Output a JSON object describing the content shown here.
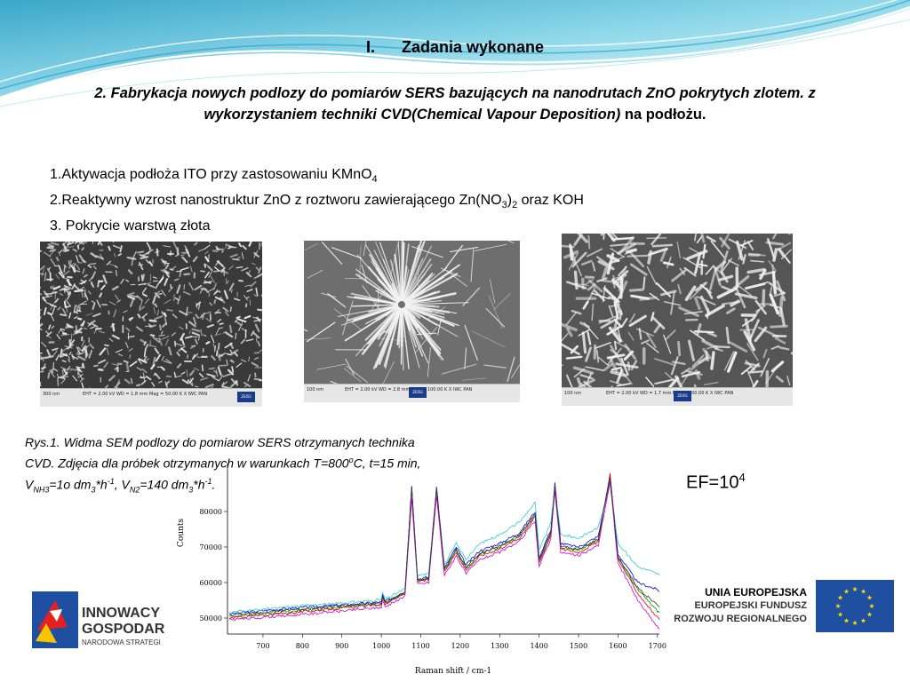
{
  "header": {
    "section_number": "I.",
    "section_title": "Zadania wykonane",
    "subtitle_number": "2",
    "subtitle_bold_italic": ". Fabrykacja nowych podlozy  do pomiarów SERS bazujących na nanodrutach ZnO pokrytych zlotem. z wykorzystaniem techniki CVD(Chemical Vapour Deposition)",
    "subtitle_tail": " na podłożu."
  },
  "steps": {
    "step1_text": "1.Aktywacja podłoża ITO przy zastosowaniu KMnO",
    "step1_sub": "4",
    "step2_text": "2.Reaktywny wzrost nanostruktur ZnO z roztworu zawierającego Zn(NO",
    "step2_sub1": "3",
    "step2_mid": ")",
    "step2_sub2": "2",
    "step2_tail": " oraz KOH",
    "step3_text": "3. Pokrycie warstwą złota"
  },
  "sem_images": [
    {
      "scale": "300 nm",
      "info": "EHT = 2.00 kV  WD = 1.8 mm  Mag = 50.00 K X  IWC PAN"
    },
    {
      "scale": "100 nm",
      "info": "EHT = 2.00 kV  WD = 2.8 mm  Mag = 100.00 K X  IWC PAN"
    },
    {
      "scale": "100 nm",
      "info": "EHT = 2.00 kV  WD = 1.7 mm  Mag = 100.00 K X  IWC PAN"
    }
  ],
  "caption": {
    "line1": "Rys.1. Widma SEM podlozy do pomiarow SERS otrzymanych technika",
    "line2": "CVD. Zdjęcia dla próbek otrzymanych w warunkach T=800",
    "line2_sub": "o",
    "line2_tail": "C, t=15 min,",
    "line3_a": "V",
    "line3_a_sub": "NH3",
    "line3_b": "=1o dm",
    "line3_b_sub": "3",
    "line3_c": "*h",
    "line3_c_sub": "-1",
    "line3_d": ", V",
    "line3_d_sub": "N2",
    "line3_e": "=140 dm",
    "line3_e_sub": "3",
    "line3_f": "*h",
    "line3_f_sub": "-1",
    "line3_g": "."
  },
  "ef": {
    "label": "EF=10",
    "exponent": "4"
  },
  "logos": {
    "left_line1": "INNOWACY",
    "left_line2": "GOSPODAR",
    "left_line3": "NARODOWA STRATEGI",
    "eu_line1": "UNIA EUROPEJSKA",
    "eu_line2": "EUROPEJSKI FUNDUSZ",
    "eu_line3": "ROZWOJU REGIONALNEGO"
  },
  "colors": {
    "banner": "#5fc6e0",
    "zeiss": "#1a3a8a",
    "eu_flag": "#1f4fa0",
    "eu_star": "#ffdd00"
  },
  "chart_data": {
    "type": "line",
    "xlabel": "Raman shift / cm-1",
    "ylabel": "Counts",
    "xlim": [
      610,
      1705
    ],
    "ylim": [
      45500,
      91000
    ],
    "x_ticks": [
      "700",
      "800",
      "900",
      "1000",
      "1100",
      "1200",
      "1300",
      "1400",
      "1500",
      "1600",
      "1700"
    ],
    "y_ticks": [
      "50000",
      "60000",
      "70000",
      "80000"
    ],
    "grid": false,
    "legend": "none",
    "series": [
      {
        "color": "#0000dd",
        "points": [
          [
            615,
            51200
          ],
          [
            700,
            52100
          ],
          [
            800,
            53000
          ],
          [
            900,
            53700
          ],
          [
            1000,
            54500
          ],
          [
            1003,
            56500
          ],
          [
            1010,
            54700
          ],
          [
            1060,
            57500
          ],
          [
            1077,
            87500
          ],
          [
            1092,
            61000
          ],
          [
            1120,
            61500
          ],
          [
            1140,
            87000
          ],
          [
            1160,
            64000
          ],
          [
            1190,
            70000
          ],
          [
            1215,
            65000
          ],
          [
            1250,
            69000
          ],
          [
            1300,
            71000
          ],
          [
            1350,
            74000
          ],
          [
            1390,
            80000
          ],
          [
            1400,
            67000
          ],
          [
            1430,
            75000
          ],
          [
            1440,
            88000
          ],
          [
            1455,
            71000
          ],
          [
            1500,
            70000
          ],
          [
            1550,
            73000
          ],
          [
            1580,
            90000
          ],
          [
            1600,
            68000
          ],
          [
            1650,
            60000
          ],
          [
            1700,
            58000
          ],
          [
            1705,
            57500
          ]
        ]
      },
      {
        "color": "#009900",
        "points": [
          [
            615,
            50500
          ],
          [
            700,
            51200
          ],
          [
            800,
            52200
          ],
          [
            900,
            53000
          ],
          [
            1000,
            54000
          ],
          [
            1003,
            56000
          ],
          [
            1010,
            54200
          ],
          [
            1060,
            57000
          ],
          [
            1077,
            86500
          ],
          [
            1092,
            60500
          ],
          [
            1120,
            61000
          ],
          [
            1140,
            86000
          ],
          [
            1160,
            63500
          ],
          [
            1190,
            69000
          ],
          [
            1215,
            64000
          ],
          [
            1250,
            68000
          ],
          [
            1300,
            70000
          ],
          [
            1350,
            73000
          ],
          [
            1390,
            79000
          ],
          [
            1400,
            66000
          ],
          [
            1430,
            74000
          ],
          [
            1440,
            87000
          ],
          [
            1455,
            70000
          ],
          [
            1500,
            69000
          ],
          [
            1550,
            72000
          ],
          [
            1580,
            89500
          ],
          [
            1600,
            67000
          ],
          [
            1650,
            58000
          ],
          [
            1700,
            52000
          ],
          [
            1705,
            51500
          ]
        ]
      },
      {
        "color": "#dd0000",
        "points": [
          [
            615,
            50000
          ],
          [
            700,
            50800
          ],
          [
            800,
            51800
          ],
          [
            900,
            52800
          ],
          [
            1000,
            53800
          ],
          [
            1003,
            55800
          ],
          [
            1010,
            54000
          ],
          [
            1060,
            56800
          ],
          [
            1077,
            87000
          ],
          [
            1092,
            60200
          ],
          [
            1120,
            60800
          ],
          [
            1140,
            86500
          ],
          [
            1160,
            63000
          ],
          [
            1190,
            68500
          ],
          [
            1215,
            63500
          ],
          [
            1250,
            67500
          ],
          [
            1300,
            69500
          ],
          [
            1350,
            72500
          ],
          [
            1390,
            78500
          ],
          [
            1400,
            65500
          ],
          [
            1430,
            73500
          ],
          [
            1440,
            87500
          ],
          [
            1455,
            69500
          ],
          [
            1500,
            68500
          ],
          [
            1550,
            71500
          ],
          [
            1580,
            90500
          ],
          [
            1600,
            66500
          ],
          [
            1650,
            57000
          ],
          [
            1700,
            50000
          ],
          [
            1705,
            49500
          ]
        ]
      },
      {
        "color": "#33cccc",
        "points": [
          [
            615,
            51500
          ],
          [
            700,
            52500
          ],
          [
            800,
            53500
          ],
          [
            900,
            54200
          ],
          [
            1000,
            55200
          ],
          [
            1003,
            57200
          ],
          [
            1010,
            55400
          ],
          [
            1060,
            58200
          ],
          [
            1077,
            86000
          ],
          [
            1092,
            62000
          ],
          [
            1120,
            62500
          ],
          [
            1140,
            85500
          ],
          [
            1160,
            65000
          ],
          [
            1190,
            71000
          ],
          [
            1215,
            66500
          ],
          [
            1250,
            71000
          ],
          [
            1300,
            73500
          ],
          [
            1350,
            77000
          ],
          [
            1390,
            82500
          ],
          [
            1400,
            69000
          ],
          [
            1430,
            77000
          ],
          [
            1440,
            86500
          ],
          [
            1455,
            73500
          ],
          [
            1500,
            72500
          ],
          [
            1550,
            75500
          ],
          [
            1580,
            87500
          ],
          [
            1600,
            71000
          ],
          [
            1650,
            64500
          ],
          [
            1700,
            62500
          ],
          [
            1705,
            62000
          ]
        ]
      },
      {
        "color": "#cc00cc",
        "points": [
          [
            615,
            49500
          ],
          [
            700,
            50200
          ],
          [
            800,
            51000
          ],
          [
            900,
            52000
          ],
          [
            1000,
            53000
          ],
          [
            1003,
            55000
          ],
          [
            1010,
            53200
          ],
          [
            1060,
            56000
          ],
          [
            1077,
            84000
          ],
          [
            1092,
            59500
          ],
          [
            1120,
            60000
          ],
          [
            1140,
            84500
          ],
          [
            1160,
            62000
          ],
          [
            1190,
            67500
          ],
          [
            1215,
            62500
          ],
          [
            1250,
            66500
          ],
          [
            1300,
            68500
          ],
          [
            1350,
            71500
          ],
          [
            1390,
            77500
          ],
          [
            1400,
            64500
          ],
          [
            1430,
            72500
          ],
          [
            1440,
            86000
          ],
          [
            1455,
            68500
          ],
          [
            1500,
            67500
          ],
          [
            1550,
            70500
          ],
          [
            1580,
            88500
          ],
          [
            1600,
            65500
          ],
          [
            1650,
            55000
          ],
          [
            1700,
            47500
          ],
          [
            1705,
            47000
          ]
        ]
      },
      {
        "color": "#333333",
        "points": [
          [
            615,
            50800
          ],
          [
            700,
            51600
          ],
          [
            800,
            52600
          ],
          [
            900,
            53400
          ],
          [
            1000,
            54200
          ],
          [
            1003,
            56200
          ],
          [
            1010,
            54400
          ],
          [
            1060,
            57200
          ],
          [
            1077,
            86800
          ],
          [
            1092,
            60800
          ],
          [
            1120,
            61200
          ],
          [
            1140,
            86200
          ],
          [
            1160,
            63700
          ],
          [
            1190,
            69300
          ],
          [
            1215,
            64300
          ],
          [
            1250,
            68300
          ],
          [
            1300,
            70300
          ],
          [
            1350,
            73300
          ],
          [
            1390,
            79300
          ],
          [
            1400,
            66300
          ],
          [
            1430,
            74300
          ],
          [
            1440,
            87300
          ],
          [
            1455,
            70300
          ],
          [
            1500,
            69300
          ],
          [
            1550,
            72300
          ],
          [
            1580,
            89800
          ],
          [
            1600,
            67300
          ],
          [
            1650,
            58500
          ],
          [
            1700,
            53500
          ],
          [
            1705,
            53000
          ]
        ]
      }
    ]
  }
}
